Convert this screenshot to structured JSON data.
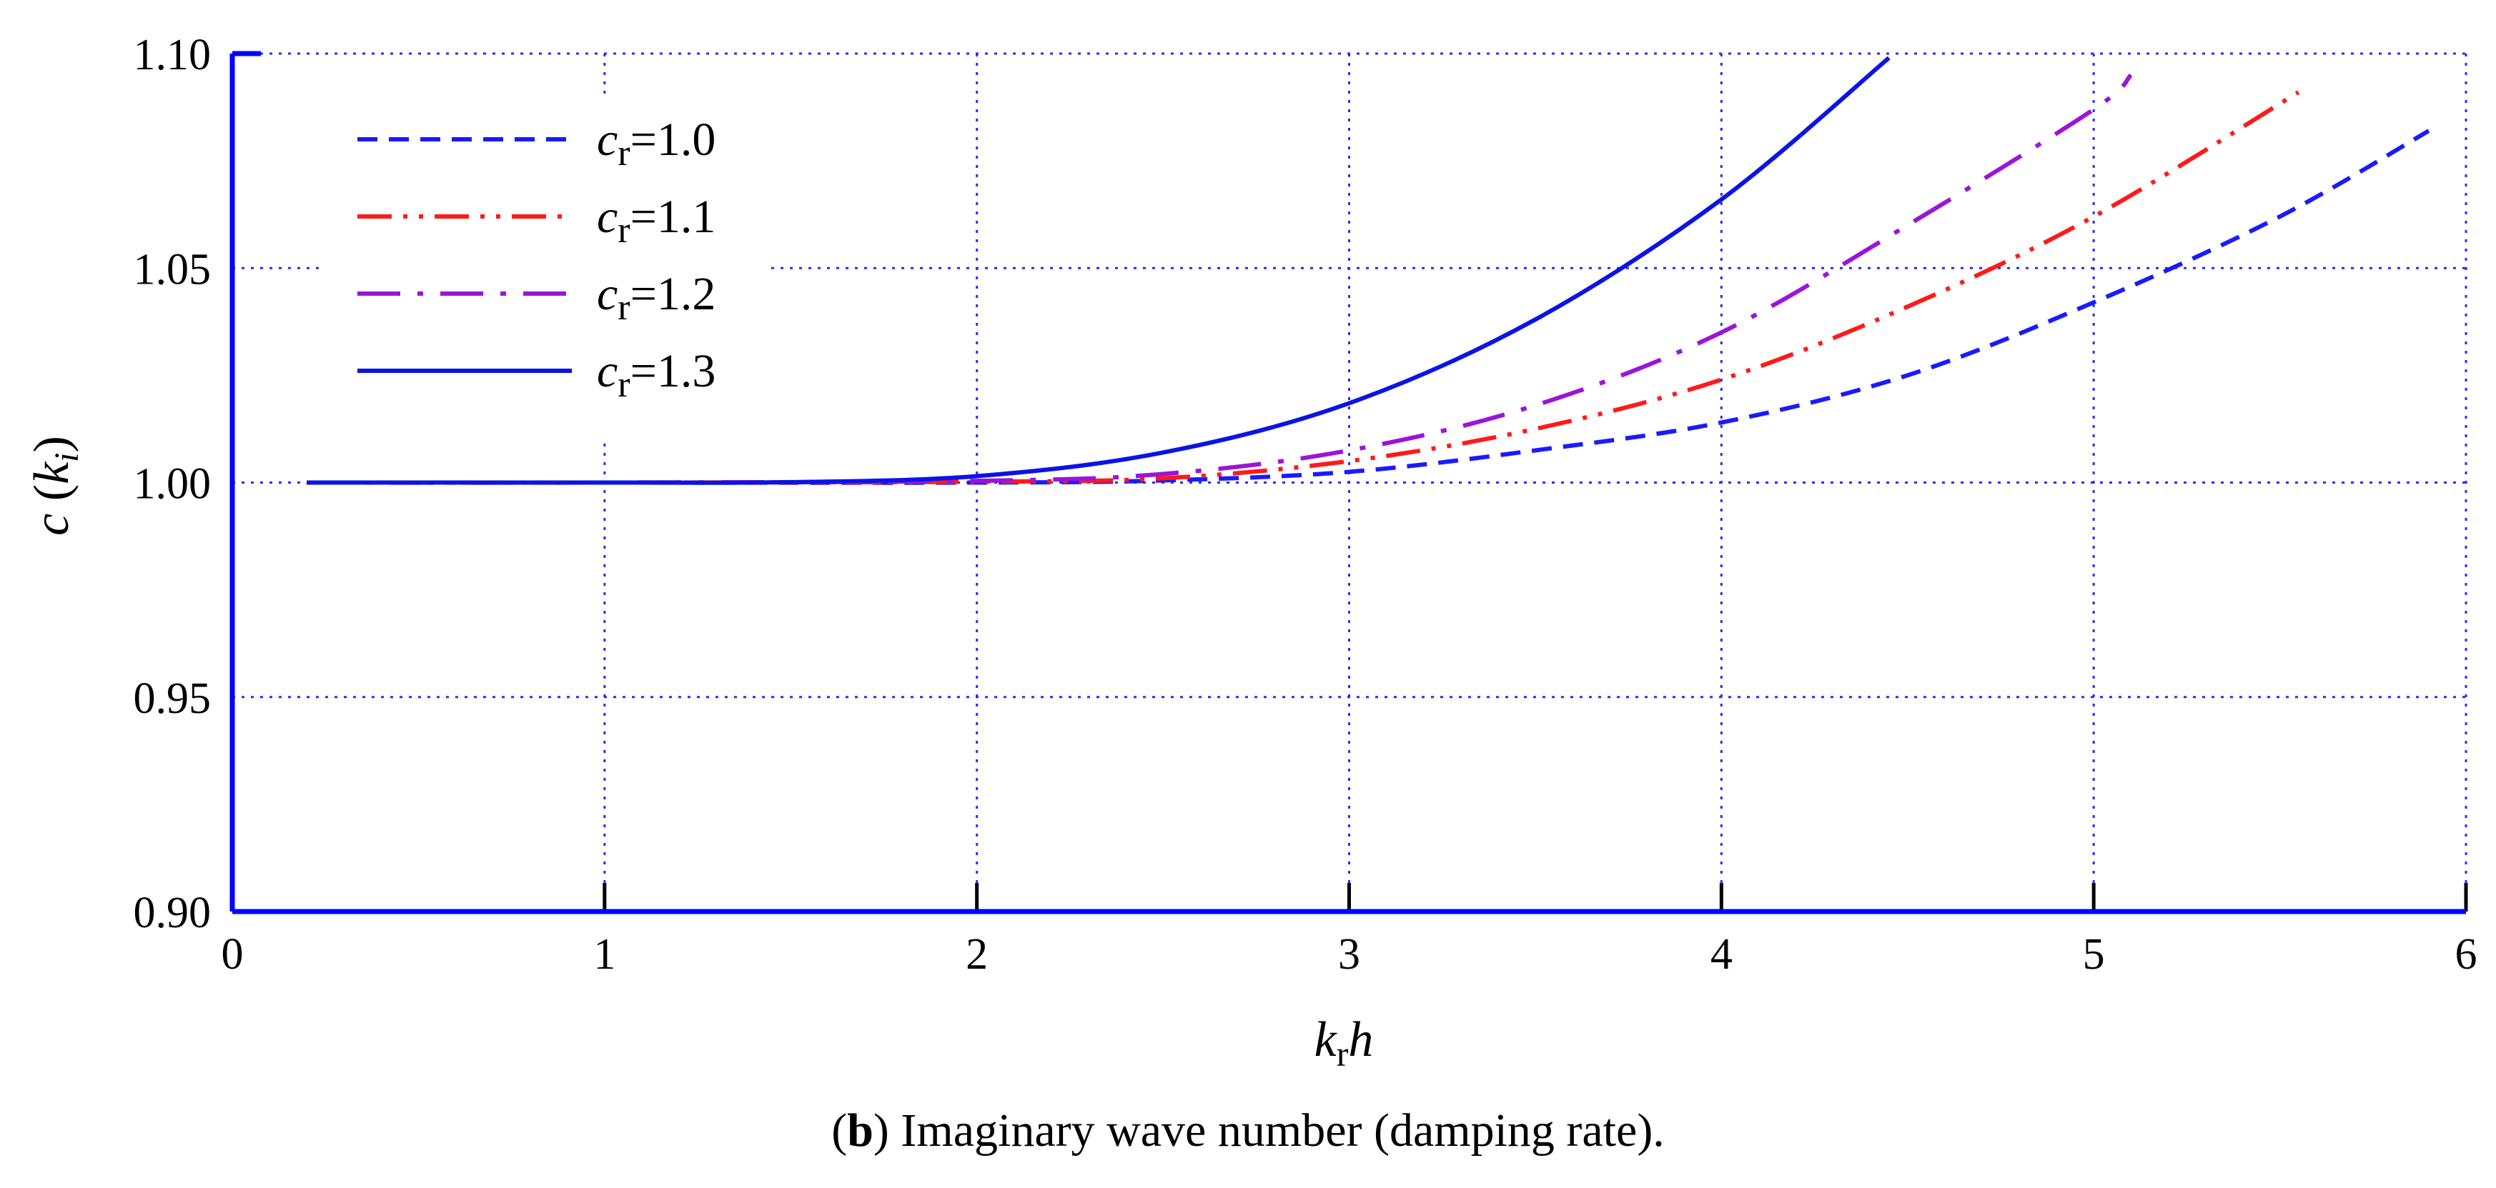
{
  "chart_data": {
    "type": "line",
    "xlabel_main": "k",
    "xlabel_sub": "r",
    "xlabel_tail": "h",
    "ylabel_main": "c",
    "ylabel_paren_open": "(",
    "ylabel_k": "k",
    "ylabel_sub": "i",
    "ylabel_paren_close": ")",
    "xlim": [
      0,
      6
    ],
    "ylim": [
      0.9,
      1.1
    ],
    "xticks": [
      0,
      1,
      2,
      3,
      4,
      5,
      6
    ],
    "xtick_labels": [
      "0",
      "1",
      "2",
      "3",
      "4",
      "5",
      "6"
    ],
    "yticks": [
      0.9,
      0.95,
      1.0,
      1.05,
      1.1
    ],
    "ytick_labels": [
      "0.90",
      "0.95",
      "1.00",
      "1.05",
      "1.10"
    ],
    "grid": true,
    "legend_position": "top-left",
    "series": [
      {
        "name": "cr=1.0",
        "label_c": "c",
        "label_sub": "r",
        "label_val": "=1.0",
        "color": "#1a1aff",
        "dash": "dashed",
        "x": [
          0.2,
          1.0,
          2.0,
          2.5,
          3.0,
          3.5,
          4.0,
          4.5,
          5.0,
          5.5,
          5.9
        ],
        "y": [
          1.0,
          1.0,
          1.0,
          1.0005,
          1.0025,
          1.0075,
          1.014,
          1.025,
          1.042,
          1.062,
          1.082
        ]
      },
      {
        "name": "cr=1.1",
        "label_c": "c",
        "label_sub": "r",
        "label_val": "=1.1",
        "color": "#ff1a1a",
        "dash": "dash-dot-dot",
        "x": [
          0.2,
          1.0,
          2.0,
          2.5,
          3.0,
          3.5,
          4.0,
          4.5,
          5.0,
          5.55
        ],
        "y": [
          1.0,
          1.0,
          1.0002,
          1.001,
          1.005,
          1.0125,
          1.024,
          1.041,
          1.062,
          1.091
        ]
      },
      {
        "name": "cr=1.2",
        "label_c": "c",
        "label_sub": "r",
        "label_val": "=1.2",
        "color": "#9b14d9",
        "dash": "long-dash-dot",
        "x": [
          0.2,
          1.0,
          2.0,
          2.5,
          3.0,
          3.5,
          4.0,
          4.5,
          5.0,
          5.1
        ],
        "y": [
          1.0,
          1.0,
          1.0004,
          1.002,
          1.0075,
          1.018,
          1.035,
          1.06,
          1.087,
          1.095
        ]
      },
      {
        "name": "cr=1.3",
        "label_c": "c",
        "label_sub": "r",
        "label_val": "=1.3",
        "color": "#0a14e6",
        "dash": "solid",
        "x": [
          0.2,
          1.0,
          1.5,
          2.0,
          2.5,
          3.0,
          3.5,
          4.0,
          4.45
        ],
        "y": [
          1.0,
          1.0,
          1.0001,
          1.0015,
          1.007,
          1.0185,
          1.038,
          1.066,
          1.099
        ]
      }
    ]
  },
  "caption": {
    "open": "(",
    "bold": "b",
    "rest": ") Imaginary wave number (damping rate)."
  }
}
